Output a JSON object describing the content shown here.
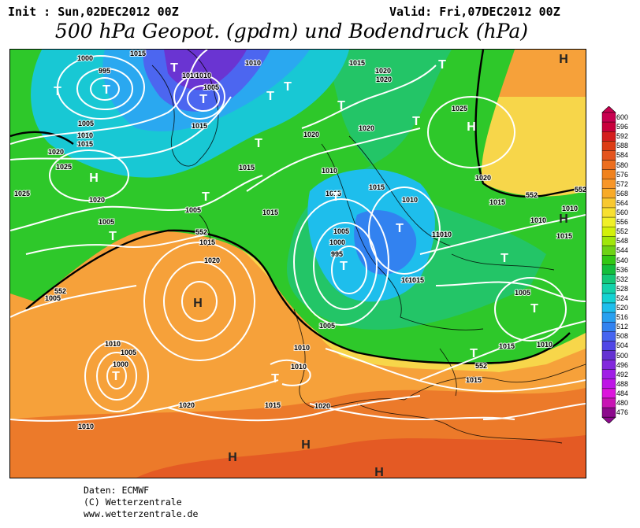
{
  "header": {
    "init": "Init : Sun,02DEC2012 00Z",
    "valid": "Valid: Fri,07DEC2012 00Z",
    "title": "500 hPa Geopot. (gpdm) und Bodendruck (hPa)"
  },
  "legend": {
    "labels": [
      "600",
      "596",
      "592",
      "588",
      "584",
      "580",
      "576",
      "572",
      "568",
      "564",
      "560",
      "556",
      "552",
      "548",
      "544",
      "540",
      "536",
      "532",
      "528",
      "524",
      "520",
      "516",
      "512",
      "508",
      "504",
      "500",
      "496",
      "492",
      "488",
      "484",
      "480",
      "476"
    ],
    "colors": [
      "#c80050",
      "#c8003c",
      "#d41e1e",
      "#dc3c14",
      "#e4541e",
      "#ec6e1e",
      "#f0821e",
      "#f89628",
      "#f8aa28",
      "#f8c830",
      "#f8e030",
      "#f0f028",
      "#d2f00a",
      "#a0e60a",
      "#6ed214",
      "#32c814",
      "#14be3c",
      "#14c878",
      "#14d2aa",
      "#14d2d2",
      "#1ebeec",
      "#28a0f0",
      "#3282f0",
      "#4664f0",
      "#5046e6",
      "#6432d2",
      "#8228dc",
      "#a01ee6",
      "#be14e6",
      "#dc14dc",
      "#c814b4",
      "#8c0a8c"
    ]
  },
  "map": {
    "isobar_labels": [
      "1000",
      "995",
      "1010",
      "1015",
      "1020",
      "1025",
      "1005",
      "1010",
      "1015",
      "1020",
      "1025",
      "1005",
      "1010",
      "1015",
      "1020",
      "1005",
      "1015",
      "1015",
      "1010",
      "1015",
      "1020",
      "1010",
      "1015",
      "1020",
      "1010",
      "1015",
      "1005",
      "995",
      "1000",
      "1005",
      "1010",
      "1015",
      "1020",
      "1025",
      "1020",
      "1015",
      "1010",
      "1005",
      "1010",
      "1015",
      "1020",
      "1005",
      "1010",
      "1000",
      "1005",
      "1010",
      "1010",
      "1015",
      "1020",
      "1015",
      "1010",
      "1015",
      "1020",
      "1005",
      "1015",
      "1010",
      "1010",
      "1015"
    ],
    "contour_labels": [
      "552",
      "552",
      "552",
      "552",
      "552"
    ],
    "lows": [
      "T",
      "T",
      "T",
      "T",
      "T",
      "T",
      "T",
      "T",
      "T",
      "T",
      "T",
      "T",
      "T",
      "T",
      "T",
      "T",
      "T",
      "T",
      "T",
      "T"
    ],
    "highs": [
      "H",
      "H",
      "H",
      "H",
      "H",
      "H",
      "H",
      "H"
    ]
  },
  "credits": {
    "line1": "Daten: ECMWF",
    "line2": "(C) Wetterzentrale",
    "line3": "www.wetterzentrale.de"
  }
}
